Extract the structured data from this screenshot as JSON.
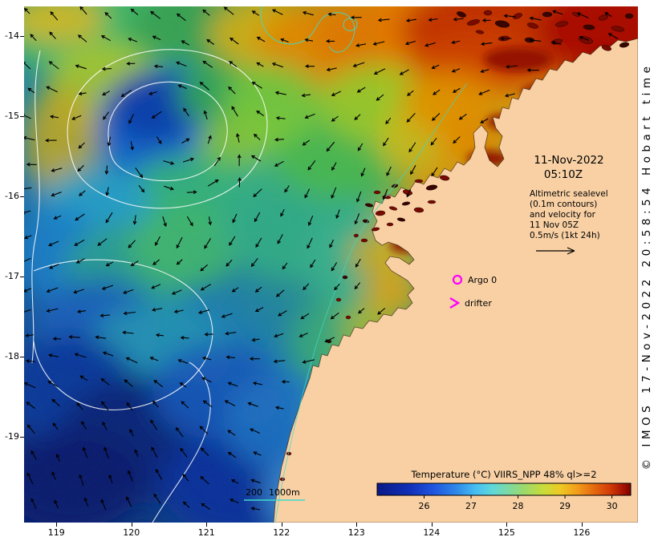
{
  "map": {
    "date_line1": "11-Nov-2022",
    "date_line2": "05:10Z",
    "note_lines": [
      "Altimetric sealevel",
      "(0.1m contours)",
      "and velocity for",
      "11 Nov 05Z",
      "0.5m/s (1kt 24h)"
    ],
    "argo_label": "Argo 0",
    "drifter_label": "drifter",
    "bathy_labels": [
      "200",
      "1000m"
    ],
    "copyright": "© IMOS 17-Nov-2022 20:58:54 Hobart time"
  },
  "axes": {
    "x_ticks": [
      119,
      120,
      121,
      122,
      123,
      124,
      125,
      126
    ],
    "y_ticks": [
      -14,
      -15,
      -16,
      -17,
      -18,
      -19
    ]
  },
  "colorbar": {
    "title": "Temperature (°C) VIIRS_NPP 48% ql>=2",
    "ticks": [
      26,
      27,
      28,
      29,
      30
    ],
    "value_range": [
      25.0,
      30.4
    ],
    "stops": [
      {
        "v": 25.0,
        "c": "#0a1a86"
      },
      {
        "v": 25.7,
        "c": "#1030b8"
      },
      {
        "v": 26.2,
        "c": "#1f55e0"
      },
      {
        "v": 26.7,
        "c": "#2f8ae8"
      },
      {
        "v": 27.1,
        "c": "#46bff2"
      },
      {
        "v": 27.45,
        "c": "#5fd8da"
      },
      {
        "v": 27.8,
        "c": "#7ed9a0"
      },
      {
        "v": 28.15,
        "c": "#9ed968"
      },
      {
        "v": 28.55,
        "c": "#c9dc3a"
      },
      {
        "v": 28.9,
        "c": "#eeca24"
      },
      {
        "v": 29.25,
        "c": "#f29e1a"
      },
      {
        "v": 29.6,
        "c": "#e56c10"
      },
      {
        "v": 29.95,
        "c": "#d43c08"
      },
      {
        "v": 30.2,
        "c": "#ad1704"
      },
      {
        "v": 30.4,
        "c": "#7d0000"
      }
    ]
  },
  "colors": {
    "land": "#f8d0a4",
    "marker_magenta": "#ff00ff",
    "bathy_cyan": "#3fd9c9",
    "contour_white": "#ffffff",
    "vector_black": "#000000"
  },
  "chart_data": {
    "type": "heatmap",
    "title": "Temperature (°C) VIIRS_NPP 48% ql>=2",
    "x_tick_labels": [
      119,
      120,
      121,
      122,
      123,
      124,
      125,
      126
    ],
    "y_tick_labels": [
      -14,
      -15,
      -16,
      -17,
      -18,
      -19
    ],
    "x_range": [
      118.6,
      126.75
    ],
    "y_range": [
      -20.05,
      -13.65
    ],
    "color_scale_ticks": [
      26,
      27,
      28,
      29,
      30
    ],
    "color_scale_range": [
      25.0,
      30.4
    ],
    "colorbar_position": "bottom-right-horizontal",
    "overlays": [
      "surface velocity vectors (black arrows)",
      "altimetric sealevel contours 0.1m (white)",
      "bathymetry contours 200m and 1000m (cyan)",
      "Argo float position (magenta circle)",
      "drifter position (magenta arrow)"
    ],
    "features": [
      {
        "name": "cold eddy with sealevel contour loops",
        "lon": 120.5,
        "lat": -15.1,
        "sst_c": 26.0
      },
      {
        "name": "warm tropical water",
        "region": "north-east near coast",
        "sst_c": 30.0
      },
      {
        "name": "coolest shelf water",
        "region": "south-west corner",
        "sst_c": 25.3
      },
      {
        "name": "mid-shelf water",
        "region": "centre",
        "sst_c": 28.0
      }
    ]
  }
}
